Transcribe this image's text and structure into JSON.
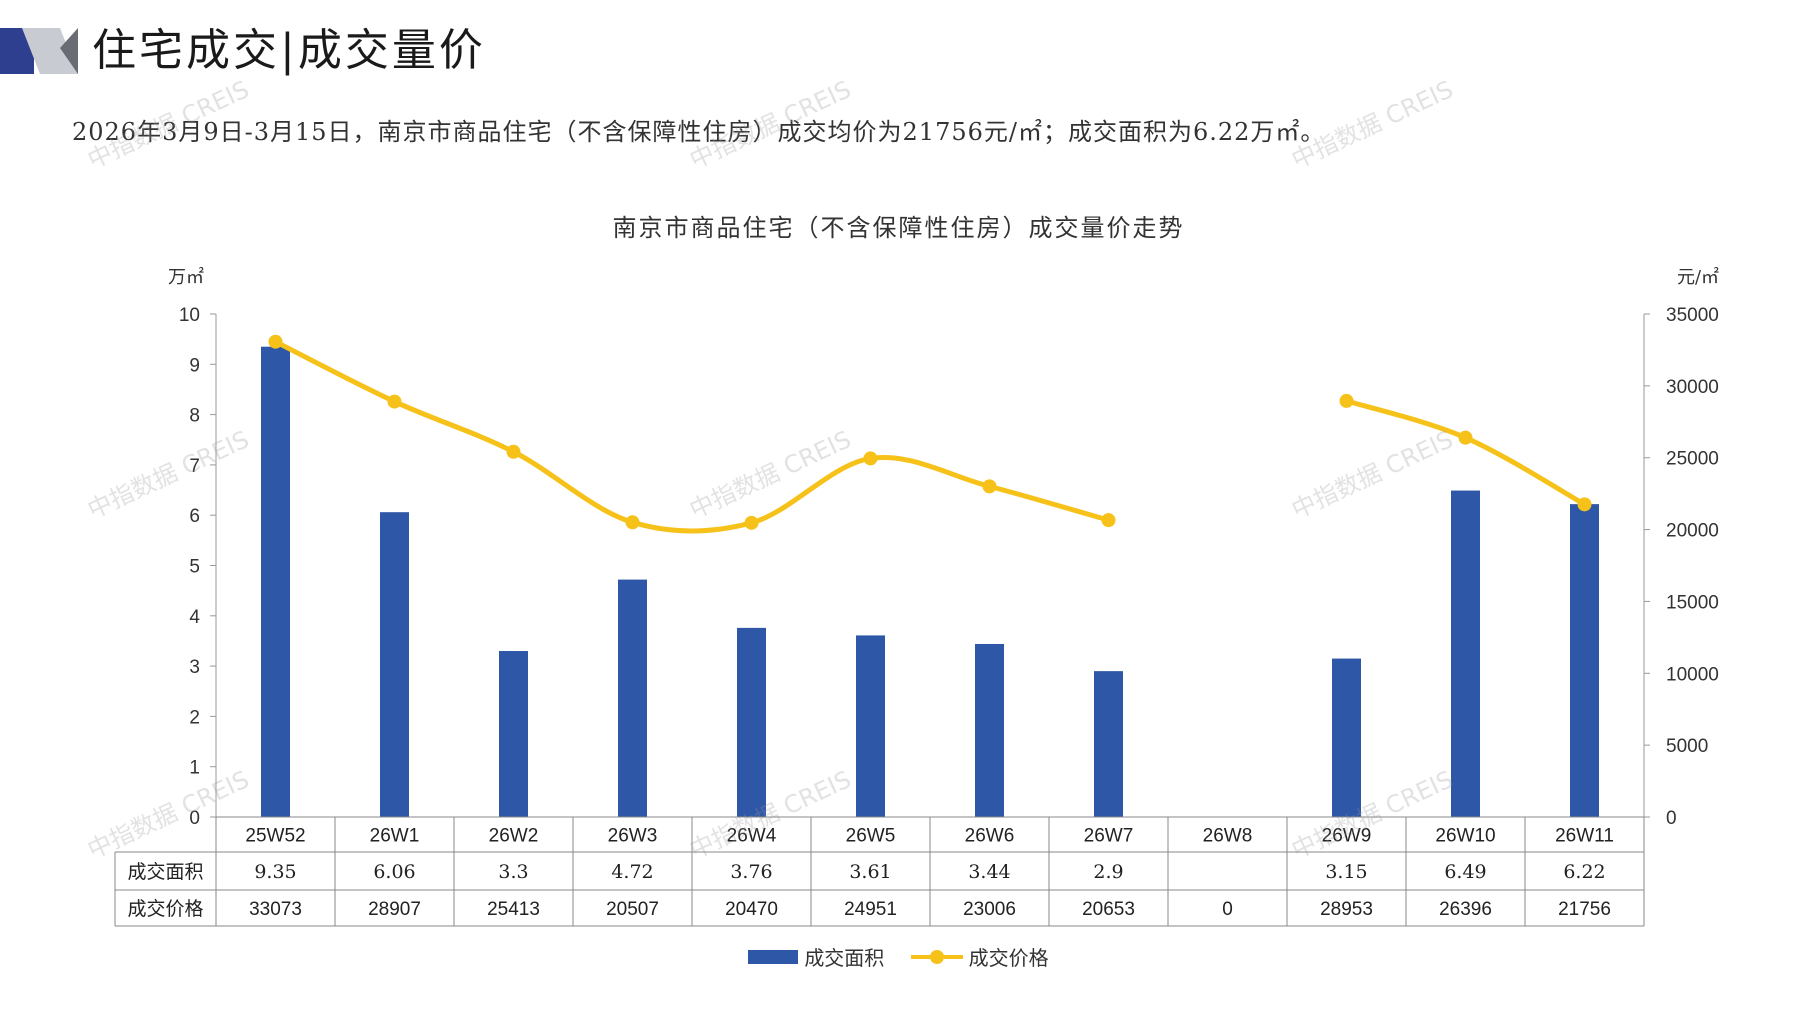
{
  "header": {
    "title": "住宅成交|成交量价"
  },
  "summary": {
    "text": "2026年3月9日-3月15日，南京市商品住宅（不含保障性住房）成交均价为21756元/㎡；成交面积为6.22万㎡。"
  },
  "watermark": {
    "text": "中指数据 CREIS"
  },
  "colors": {
    "bar": "#2e57a7",
    "line": "#f6c21a",
    "logo_dark": "#2e3f8f",
    "logo_light": "#c9cbd3"
  },
  "chart_data": {
    "type": "bar",
    "title": "南京市商品住宅（不含保障性住房）成交量价走势",
    "categories": [
      "25W52",
      "26W1",
      "26W2",
      "26W3",
      "26W4",
      "26W5",
      "26W6",
      "26W7",
      "26W8",
      "26W9",
      "26W10",
      "26W11"
    ],
    "series": [
      {
        "name": "成交面积",
        "type": "bar",
        "axis": "left",
        "values": [
          9.35,
          6.06,
          3.3,
          4.72,
          3.76,
          3.61,
          3.44,
          2.9,
          null,
          3.15,
          6.49,
          6.22
        ],
        "labels": [
          "9.35",
          "6.06",
          "3.3",
          "4.72",
          "3.76",
          "3.61",
          "3.44",
          "2.9",
          "",
          "3.15",
          "6.49",
          "6.22"
        ]
      },
      {
        "name": "成交价格",
        "type": "line",
        "axis": "right",
        "smooth": true,
        "values": [
          33073,
          28907,
          25413,
          20507,
          20470,
          24951,
          23006,
          20653,
          0,
          28953,
          26396,
          21756
        ],
        "labels": [
          "33073",
          "28907",
          "25413",
          "20507",
          "20470",
          "24951",
          "23006",
          "20653",
          "0",
          "28953",
          "26396",
          "21756"
        ],
        "gap_at_zero": true
      }
    ],
    "y_left": {
      "unit": "万㎡",
      "range": [
        0,
        10
      ],
      "ticks": [
        "0",
        "1",
        "2",
        "3",
        "4",
        "5",
        "6",
        "7",
        "8",
        "9",
        "10"
      ]
    },
    "y_right": {
      "unit": "元/㎡",
      "range": [
        0,
        35000
      ],
      "ticks": [
        "0",
        "5000",
        "10000",
        "15000",
        "20000",
        "25000",
        "30000",
        "35000"
      ]
    },
    "legend_position": "bottom",
    "data_table": true
  }
}
